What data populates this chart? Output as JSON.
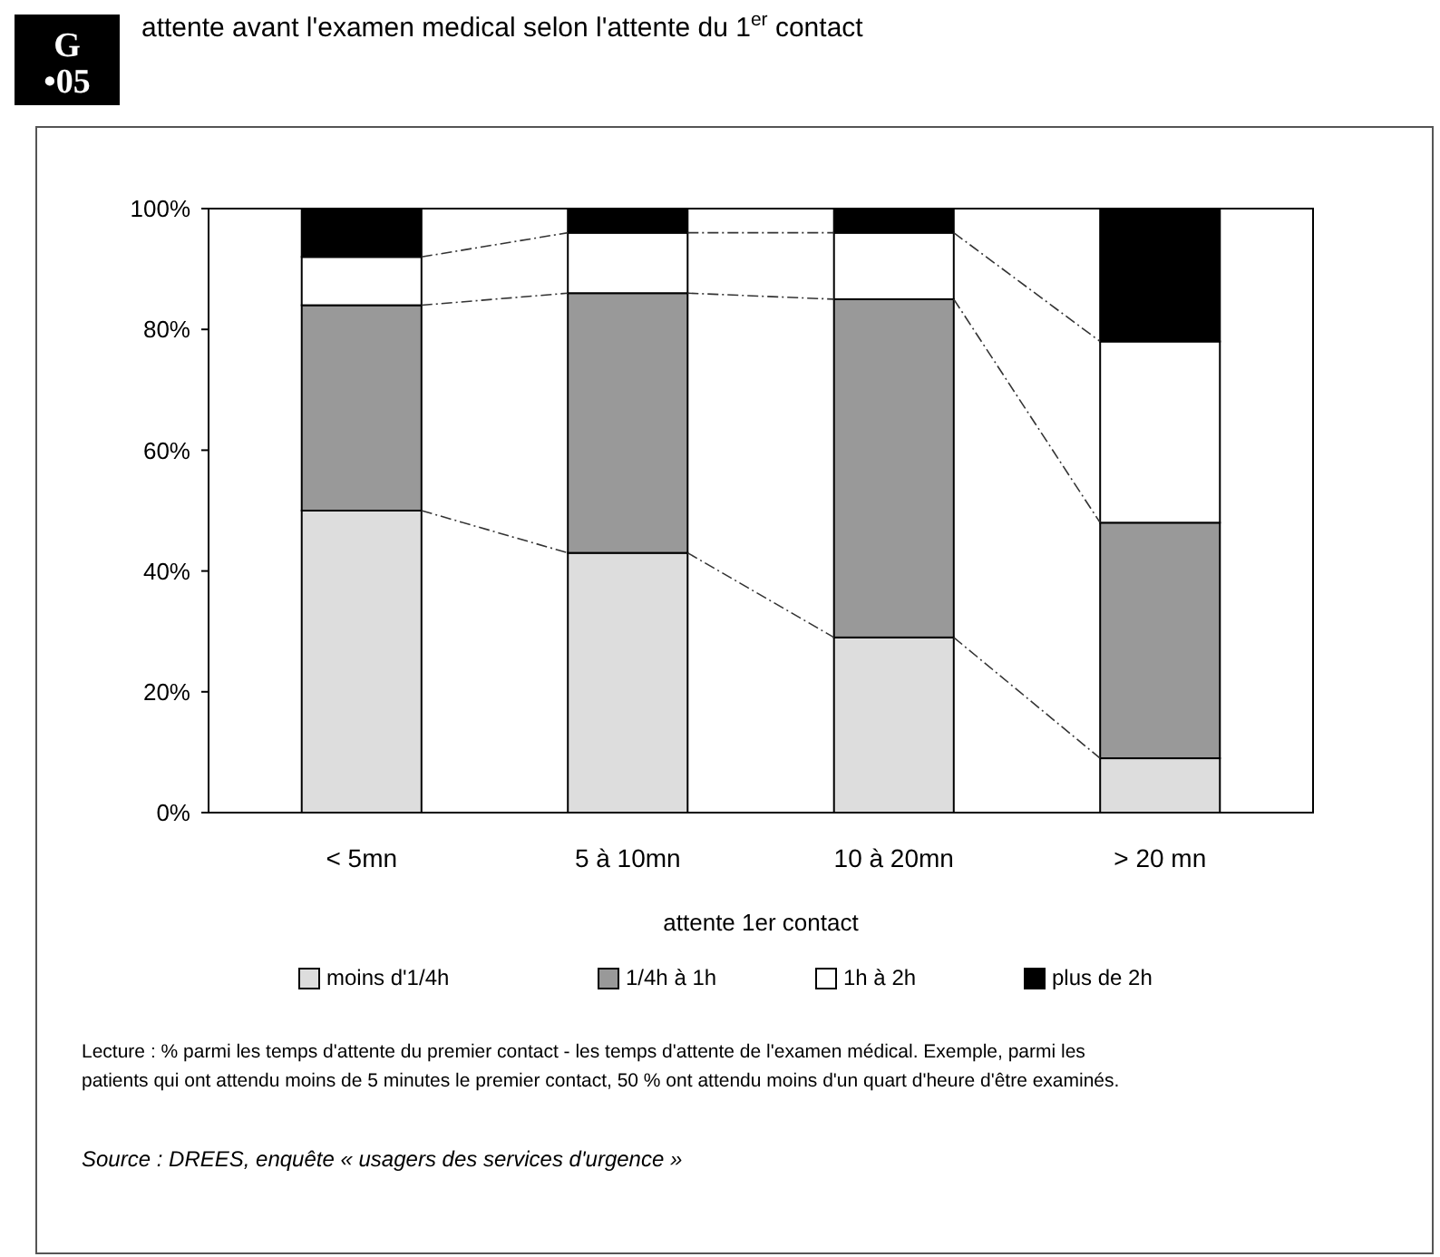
{
  "chart_data": {
    "type": "bar",
    "stacked": true,
    "title": "attente avant l'examen medical selon l'attente du 1$^{er}$ contact",
    "categories": [
      "< 5mn",
      "5 à 10mn",
      "10 à 20mn",
      "> 20 mn"
    ],
    "series": [
      {
        "name": "moins d'1/4h",
        "color": "#dddddd",
        "values": [
          50,
          43,
          29,
          9
        ]
      },
      {
        "name": "1/4h à 1h",
        "color": "#999999",
        "values": [
          34,
          43,
          56,
          39
        ]
      },
      {
        "name": "1h à 2h",
        "color": "#ffffff",
        "values": [
          8,
          10,
          11,
          30
        ]
      },
      {
        "name": "plus de 2h",
        "color": "#000000",
        "values": [
          8,
          4,
          4,
          22
        ]
      }
    ],
    "xlabel": "attente 1er contact",
    "ylim": [
      0,
      100
    ],
    "yticks": [
      {
        "value": 0,
        "label": "0%"
      },
      {
        "value": 20,
        "label": "20%"
      },
      {
        "value": 40,
        "label": "40%"
      },
      {
        "value": 60,
        "label": "60%"
      },
      {
        "value": 80,
        "label": "80%"
      },
      {
        "value": 100,
        "label": "100%"
      }
    ],
    "grid": false,
    "legend": "bottom",
    "annotations": [
      "G •05",
      "Lecture : % parmi les temps d'attente du premier contact - les temps d'attente de l'examen médical. Exemple, parmi les patients qui ont attendu moins de 5 minutes le premier contact, 50 % ont attendu moins d'un quart d'heure d'être examinés.",
      "Source : DREES, enquête « usagers des services d'urgence »"
    ]
  }
}
